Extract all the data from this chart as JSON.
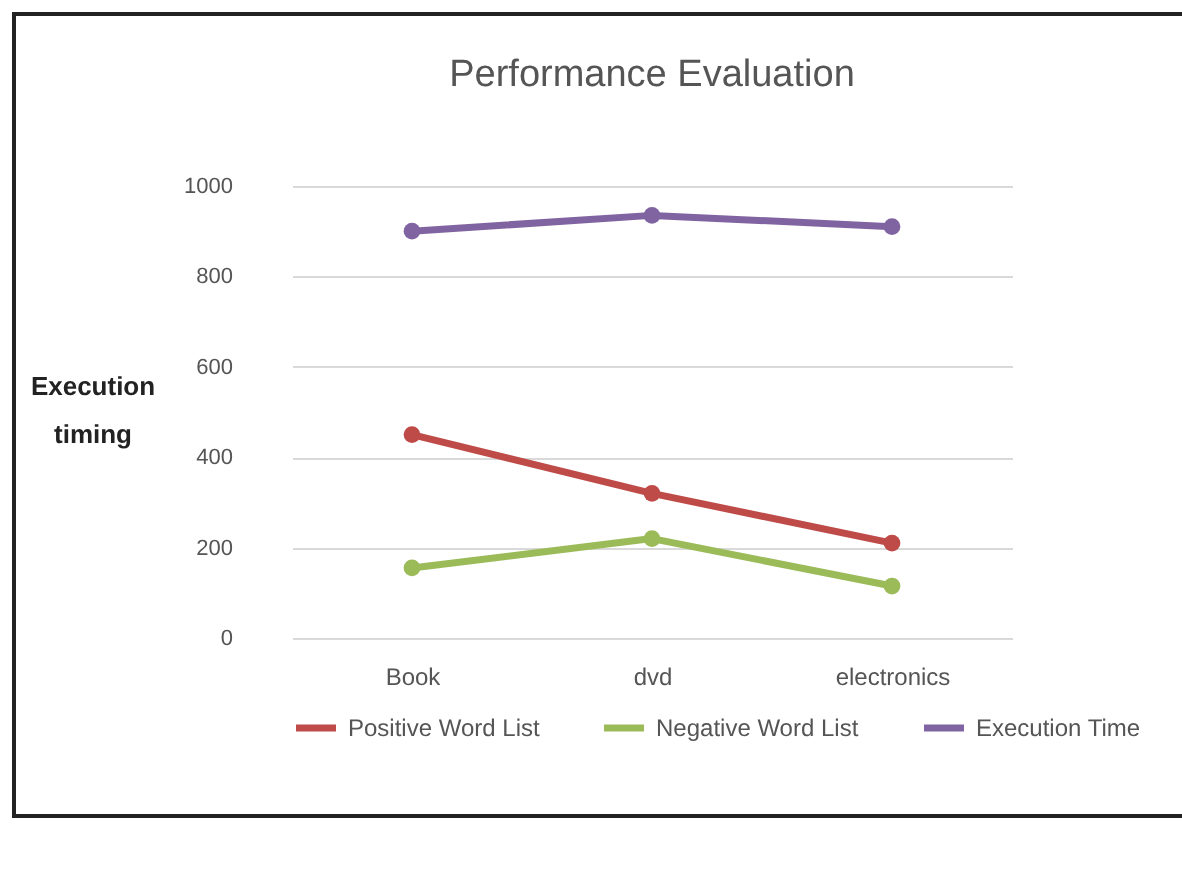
{
  "chart_data": {
    "type": "line",
    "title": "Performance Evaluation",
    "ylabel": "Execution timing",
    "categories": [
      "Book",
      "dvd",
      "electronics"
    ],
    "series": [
      {
        "name": "Positive Word List",
        "color": "#be4b48",
        "values": [
          450,
          320,
          210
        ]
      },
      {
        "name": "Negative Word List",
        "color": "#9bbb59",
        "values": [
          155,
          220,
          115
        ]
      },
      {
        "name": "Execution Time",
        "color": "#8064a2",
        "values": [
          900,
          935,
          910
        ]
      }
    ],
    "ylim": [
      0,
      1000
    ],
    "yticks": [
      0,
      200,
      400,
      600,
      800,
      1000
    ],
    "grid": "y",
    "legend": "bottom",
    "marker": "circle",
    "line_style": "solid"
  }
}
